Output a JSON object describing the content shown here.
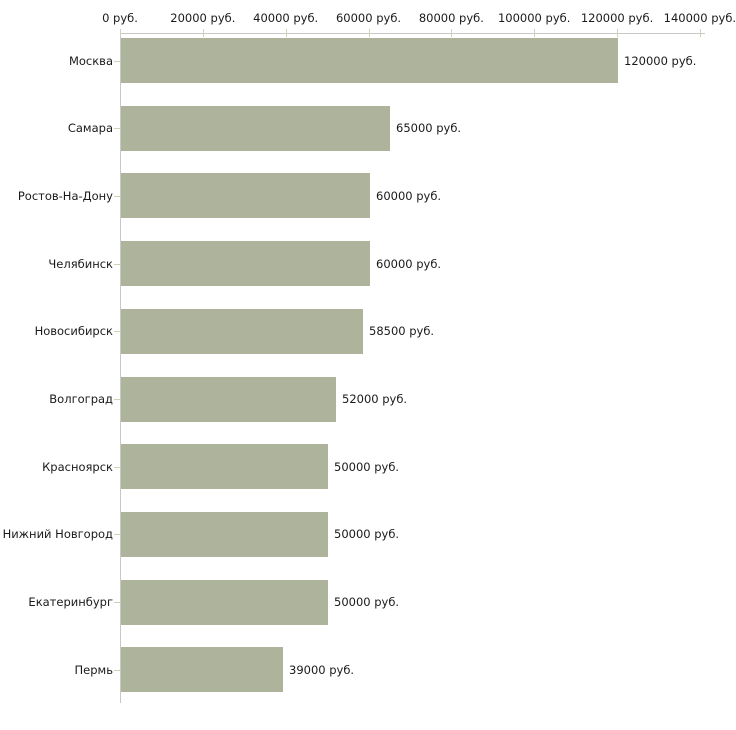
{
  "chart_data": {
    "type": "bar",
    "orientation": "horizontal",
    "title": "",
    "categories": [
      "Москва",
      "Самара",
      "Ростов-На-Дону",
      "Челябинск",
      "Новосибирск",
      "Волгоград",
      "Красноярск",
      "Нижний Новгород",
      "Екатеринбург",
      "Пермь"
    ],
    "values": [
      120000,
      65000,
      60000,
      60000,
      58500,
      52000,
      50000,
      50000,
      50000,
      39000
    ],
    "value_labels": [
      "120000 руб.",
      "65000 руб.",
      "60000 руб.",
      "60000 руб.",
      "58500 руб.",
      "52000 руб.",
      "50000 руб.",
      "50000 руб.",
      "50000 руб.",
      "39000 руб."
    ],
    "x_axis": {
      "min": 0,
      "max": 140000,
      "tick_interval": 20000,
      "unit": "руб.",
      "tick_labels": [
        "0 руб.",
        "20000 руб.",
        "40000 руб.",
        "60000 руб.",
        "80000 руб.",
        "100000 руб.",
        "120000 руб.",
        "140000 руб."
      ]
    },
    "legend": false,
    "grid": false,
    "colors": {
      "bar": "#aeb49b",
      "axis_line": "#c8c8c8",
      "tick_mark": "#cfd2b5",
      "text": "#1a1a1a",
      "background": "#ffffff"
    }
  }
}
